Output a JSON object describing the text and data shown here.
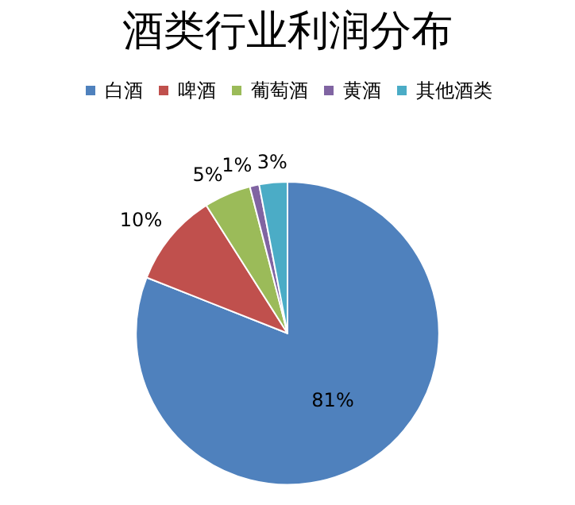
{
  "chart_data": {
    "type": "pie",
    "title": "酒类行业利润分布",
    "categories": [
      "白酒",
      "啤酒",
      "葡萄酒",
      "黄酒",
      "其他酒类"
    ],
    "values": [
      81,
      10,
      5,
      1,
      3
    ],
    "colors": [
      "#4f81bd",
      "#c0504d",
      "#9bbb59",
      "#8064a2",
      "#4bacc6"
    ],
    "value_labels": [
      "81%",
      "10%",
      "5%",
      "1%",
      "3%"
    ],
    "legend": "top"
  }
}
